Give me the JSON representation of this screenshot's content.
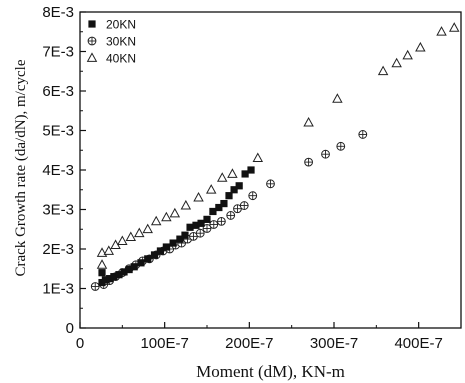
{
  "chart_data": {
    "type": "scatter",
    "title": "",
    "xlabel": "Moment (dM), KN-m",
    "ylabel": "Crack Growth rate (da/dN), m/cycle",
    "xlim": [
      0,
      4.5e-05
    ],
    "ylim": [
      0,
      0.008
    ],
    "x_ticks": [
      {
        "value": 0,
        "label": "0"
      },
      {
        "value": 1e-05,
        "label": "100E-7"
      },
      {
        "value": 2e-05,
        "label": "200E-7"
      },
      {
        "value": 3e-05,
        "label": "300E-7"
      },
      {
        "value": 4e-05,
        "label": "400E-7"
      }
    ],
    "y_ticks": [
      {
        "value": 0,
        "label": "0"
      },
      {
        "value": 0.001,
        "label": "1E-3"
      },
      {
        "value": 0.002,
        "label": "2E-3"
      },
      {
        "value": 0.003,
        "label": "3E-3"
      },
      {
        "value": 0.004,
        "label": "4E-3"
      },
      {
        "value": 0.005,
        "label": "5E-3"
      },
      {
        "value": 0.006,
        "label": "6E-3"
      },
      {
        "value": 0.007,
        "label": "7E-3"
      },
      {
        "value": 0.008,
        "label": "8E-3"
      }
    ],
    "grid": false,
    "legend_position": "top-left",
    "series": [
      {
        "name": "20KN",
        "marker": "filled-square",
        "x": [
          2.6e-06,
          2.6e-06,
          3e-06,
          3.5e-06,
          4e-06,
          4.6e-06,
          5.2e-06,
          5.8e-06,
          6.4e-06,
          7.2e-06,
          8e-06,
          8.8e-06,
          9.5e-06,
          1.02e-05,
          1.1e-05,
          1.18e-05,
          1.24e-05,
          1.3e-05,
          1.37e-05,
          1.43e-05,
          1.5e-05,
          1.57e-05,
          1.64e-05,
          1.7e-05,
          1.76e-05,
          1.82e-05,
          1.88e-05,
          1.95e-05,
          2.02e-05
        ],
        "y": [
          0.00115,
          0.0014,
          0.00122,
          0.00125,
          0.0013,
          0.00135,
          0.00142,
          0.00148,
          0.00155,
          0.00165,
          0.00175,
          0.00185,
          0.00195,
          0.00205,
          0.00215,
          0.00225,
          0.00235,
          0.00255,
          0.0026,
          0.00265,
          0.00275,
          0.00295,
          0.00305,
          0.00315,
          0.00335,
          0.0035,
          0.0036,
          0.0039,
          0.004
        ]
      },
      {
        "name": "30KN",
        "marker": "circle-cross",
        "x": [
          1.8e-06,
          2.8e-06,
          3.5e-06,
          4.2e-06,
          5e-06,
          5.8e-06,
          6.6e-06,
          7.4e-06,
          8.2e-06,
          9e-06,
          9.8e-06,
          1.06e-05,
          1.13e-05,
          1.2e-05,
          1.27e-05,
          1.34e-05,
          1.42e-05,
          1.5e-05,
          1.58e-05,
          1.67e-05,
          1.78e-05,
          1.86e-05,
          1.94e-05,
          2.04e-05,
          2.25e-05,
          2.7e-05,
          2.9e-05,
          3.08e-05,
          3.34e-05
        ],
        "y": [
          0.00105,
          0.0011,
          0.0012,
          0.0013,
          0.0014,
          0.0015,
          0.0016,
          0.0017,
          0.00175,
          0.00185,
          0.00195,
          0.002,
          0.0021,
          0.00215,
          0.00225,
          0.00232,
          0.0024,
          0.00252,
          0.00262,
          0.0027,
          0.00285,
          0.00302,
          0.0031,
          0.00335,
          0.00365,
          0.0042,
          0.0044,
          0.0046,
          0.0049
        ]
      },
      {
        "name": "40KN",
        "marker": "open-triangle",
        "x": [
          2.6e-06,
          2.6e-06,
          3.4e-06,
          4.2e-06,
          5e-06,
          6e-06,
          7e-06,
          8e-06,
          9e-06,
          1.02e-05,
          1.12e-05,
          1.25e-05,
          1.4e-05,
          1.55e-05,
          1.68e-05,
          1.8e-05,
          2.1e-05,
          2.7e-05,
          3.04e-05,
          3.58e-05,
          3.74e-05,
          3.87e-05,
          4.02e-05,
          4.27e-05,
          4.42e-05
        ],
        "y": [
          0.0016,
          0.0019,
          0.00195,
          0.0021,
          0.0022,
          0.0023,
          0.0024,
          0.0025,
          0.0027,
          0.0028,
          0.0029,
          0.0031,
          0.0033,
          0.0035,
          0.0038,
          0.0039,
          0.0043,
          0.0052,
          0.0058,
          0.0065,
          0.0067,
          0.0069,
          0.0071,
          0.0075,
          0.0076
        ]
      }
    ]
  }
}
